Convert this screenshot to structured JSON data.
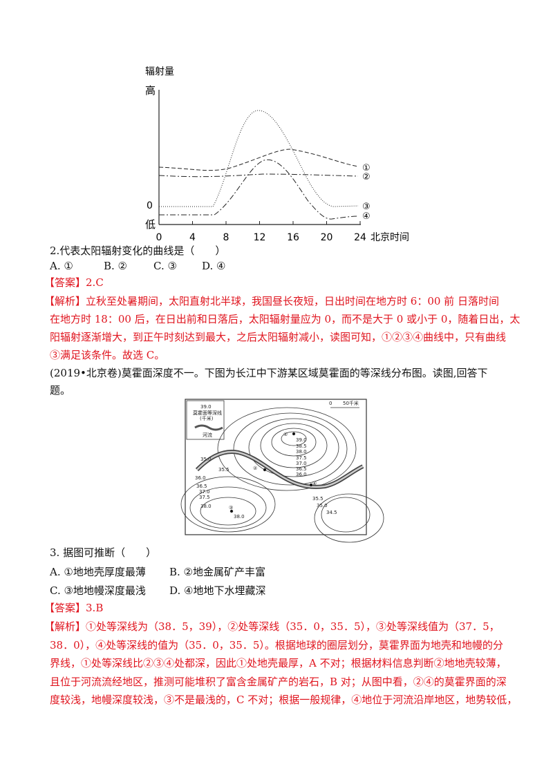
{
  "figure1": {
    "y_label": "辐射量",
    "high": "高",
    "low": "低",
    "zero": "0",
    "xlim": [
      0,
      24
    ],
    "xticks": [
      0,
      4,
      8,
      12,
      16,
      20,
      24
    ],
    "x_label": "北京时间",
    "curve_labels": [
      "①",
      "②",
      "③",
      "④"
    ]
  },
  "question2": {
    "stem": "2.代表太阳辐射变化的曲线是（　　）",
    "options": [
      "A. ①",
      "B. ②",
      "C. ③",
      "D. ④"
    ],
    "answer_tag": "【答案】",
    "answer": "2.C",
    "analysis_tag": "【解析】",
    "analysis": [
      "立秋至处暑期间，太阳直射北半球，我国昼长夜短，日出时间在地方时 6：00 前 日落时间",
      "在地方时 18：00 后，在日出前和日落后，太阳辐射量应为 0，而不是大于 0 或小于 0，随着日出，太",
      "阳辐射逐渐增大，到正午时刻达到最大，之后太阳辐射减小，读图可知，①②③④曲线中，只有曲线",
      "③满足该条件。故选 C。"
    ]
  },
  "intro": [
    "(2019•北京卷)莫霍面深度不一。下图为长江中下游某区域莫霍面的等深线分布图。读图,回答下",
    "题。"
  ],
  "map": {
    "labels": [
      "39.0",
      "莫霍面等深线",
      "(千米)",
      "河流",
      "0",
      "50千米",
      "①",
      "39.0",
      "38.5",
      "38.0",
      "37.5",
      "37.0",
      "36.5",
      "36.0",
      "35.0",
      "35.5",
      "36.0",
      "36.5",
      "37.0",
      "37.5",
      "38.0",
      "②",
      "③",
      "38.0",
      "④",
      "35.5",
      "35.0",
      "34.5"
    ]
  },
  "question3": {
    "stem": "3. 据图可推断（　　）",
    "options": [
      "A. ①地地壳厚度最薄",
      "B. ②地金属矿产丰富",
      "C. ③地地幔深度最浅",
      "D. ④地地下水埋藏深"
    ],
    "answer_tag": "【答案】",
    "answer": "3.B",
    "analysis_tag": "【解析】",
    "analysis": [
      "①处等深线为（38．5，39），②处等深线（35．0，35．5），③处等深线值为（37．5，",
      "38．0），④处等深线的值为（35．0，35．5）。根据地球的圈层划分，莫霍界面为地壳和地幔的分",
      "界线，①处等深线比②③④处都深，因此①处地壳最厚，A 不对；根据材料信息判断②地地壳较薄，",
      "且位于河流流经地区，推测可能堆积了富含金属矿产的岩石，B 对；从图中看，②④的莫霍界面的深",
      "度较浅，地幔深度较浅，③不是最浅的，C 不对；根据一般规律，④地位于河流沿岸地区，地势较低，"
    ]
  }
}
